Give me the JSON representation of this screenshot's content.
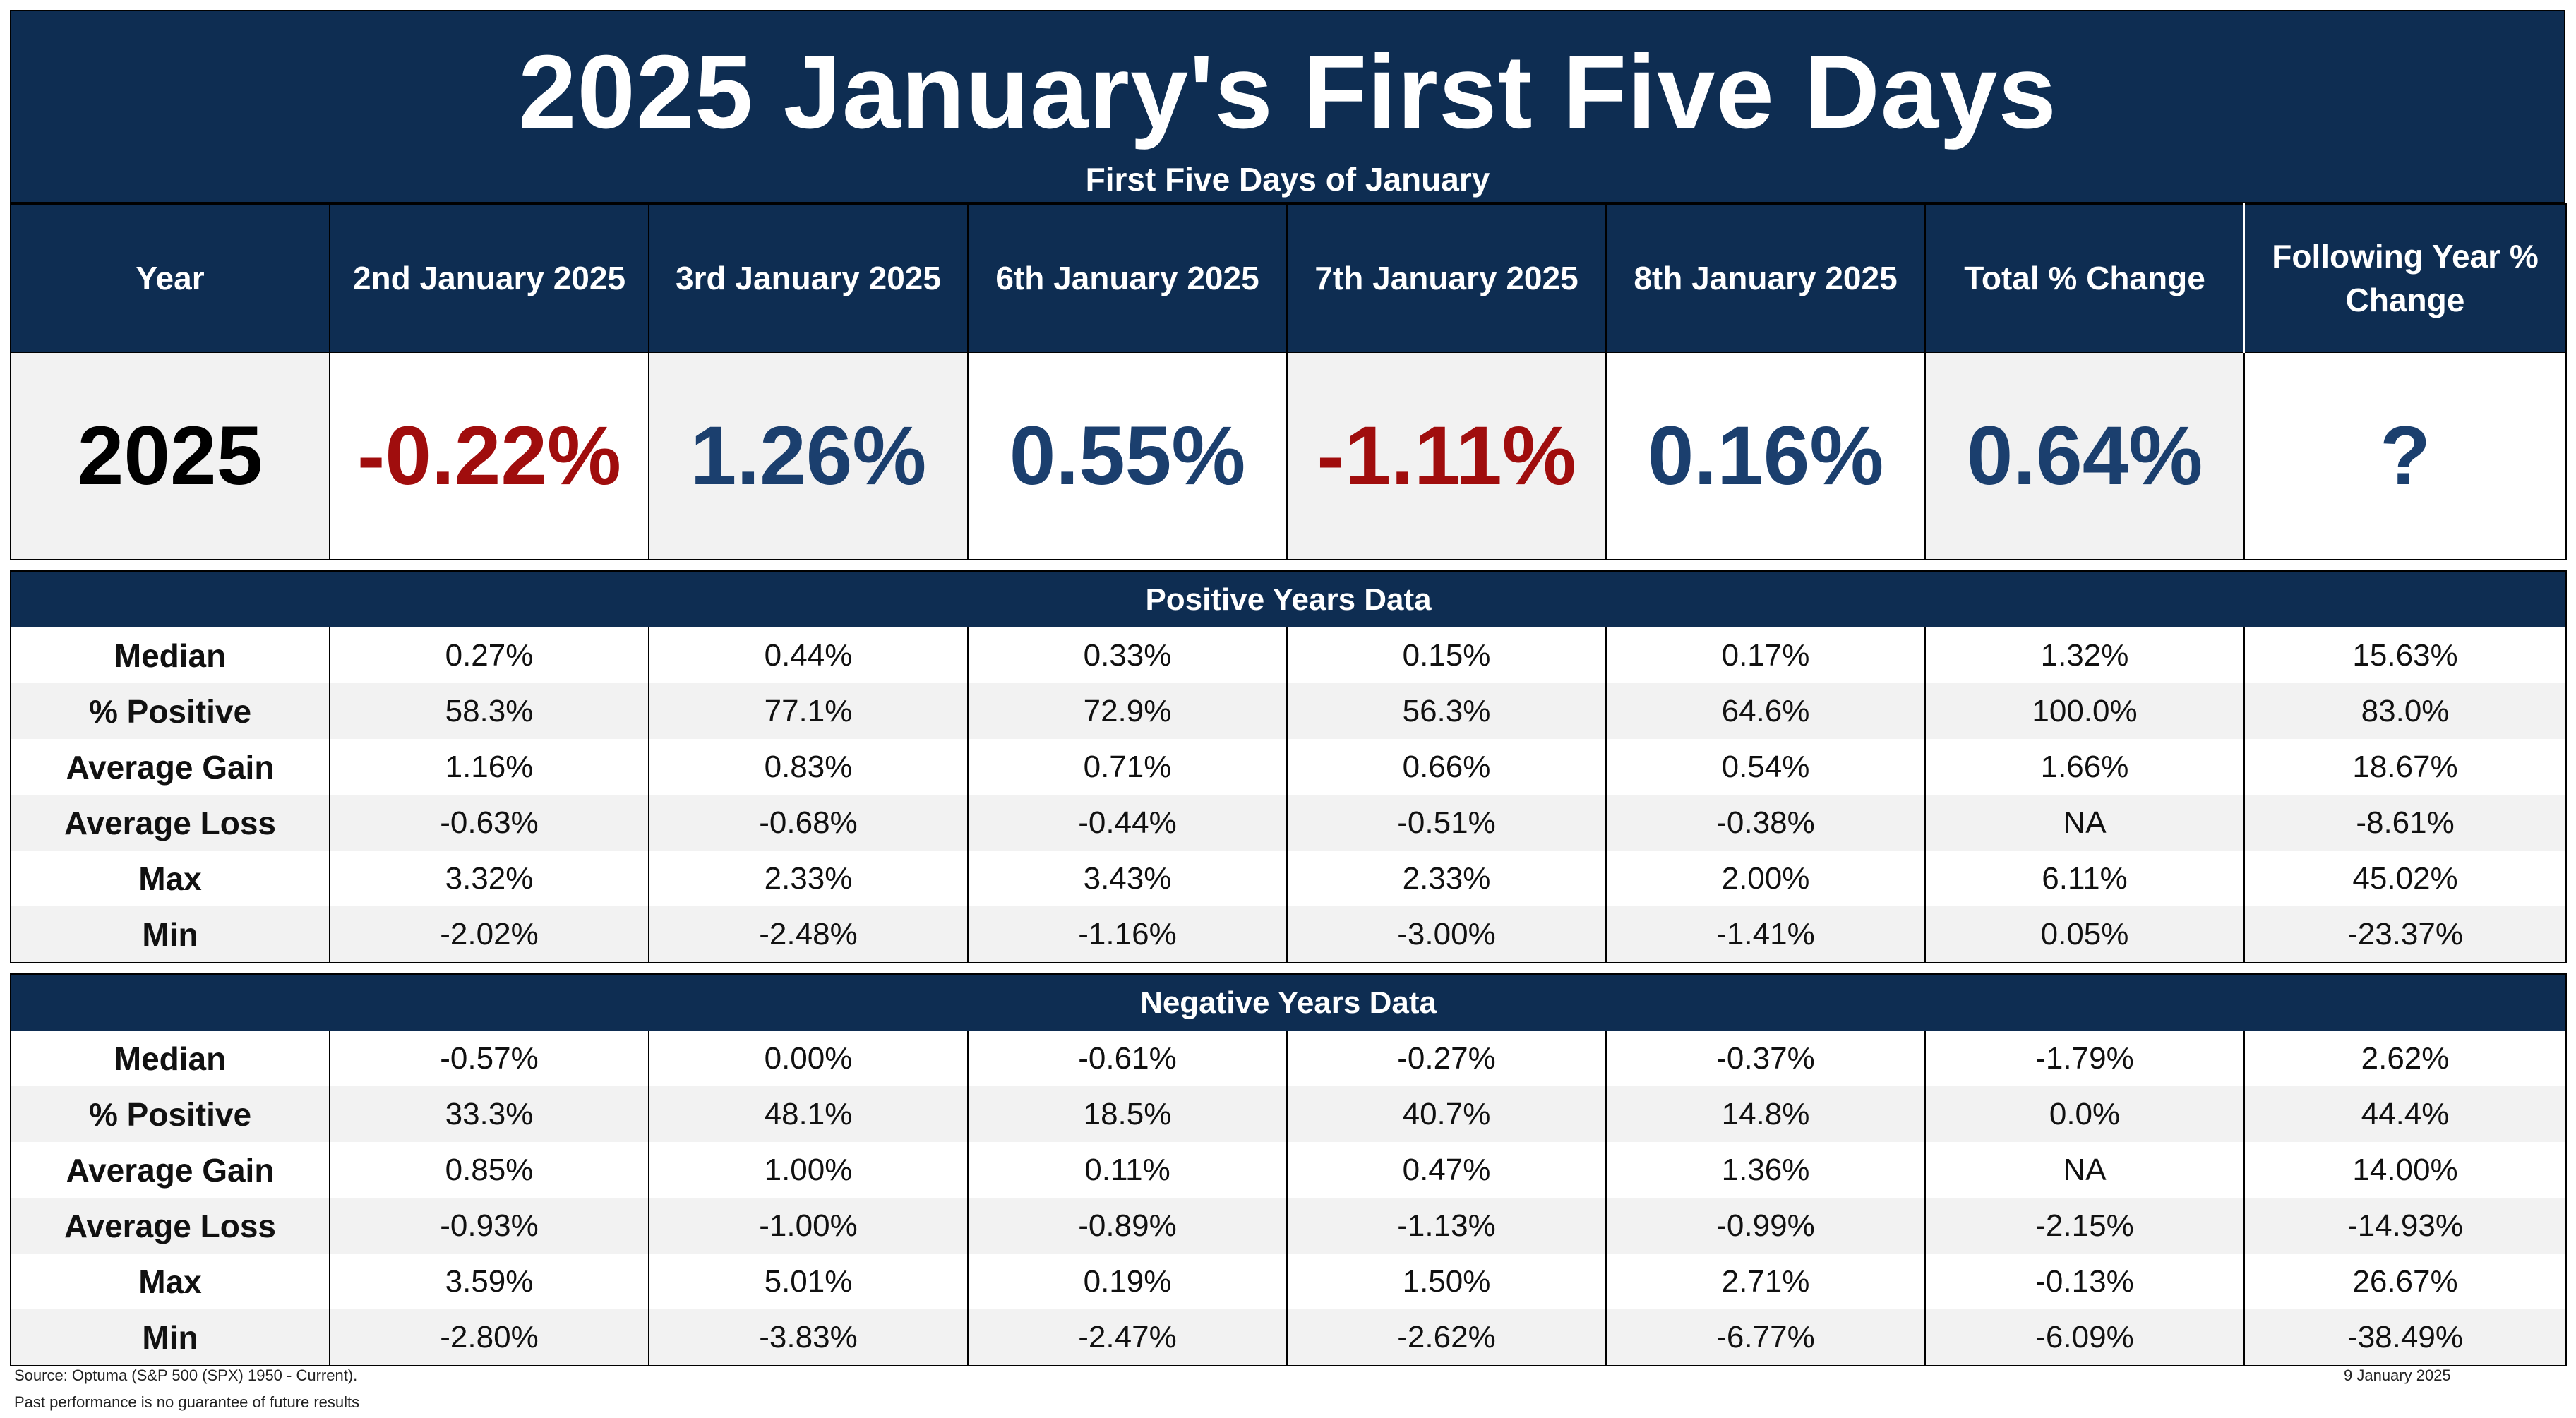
{
  "title": "2025 January's First Five Days",
  "subtitle": "First Five Days of January",
  "headers": [
    "Year",
    "2nd January 2025",
    "3rd January 2025",
    "6th January 2025",
    "7th January 2025",
    "8th January 2025",
    "Total % Change",
    "Following Year % Change"
  ],
  "current": {
    "year": "2025",
    "values": [
      "-0.22%",
      "1.26%",
      "0.55%",
      "-1.11%",
      "0.16%",
      "0.64%",
      "?"
    ],
    "colors": {
      "negative": "#a00d0d",
      "positive": "#1b3f6e"
    }
  },
  "positive": {
    "title": "Positive Years Data",
    "rows": [
      {
        "label": "Median",
        "values": [
          "0.27%",
          "0.44%",
          "0.33%",
          "0.15%",
          "0.17%",
          "1.32%",
          "15.63%"
        ]
      },
      {
        "label": "% Positive",
        "values": [
          "58.3%",
          "77.1%",
          "72.9%",
          "56.3%",
          "64.6%",
          "100.0%",
          "83.0%"
        ]
      },
      {
        "label": "Average Gain",
        "values": [
          "1.16%",
          "0.83%",
          "0.71%",
          "0.66%",
          "0.54%",
          "1.66%",
          "18.67%"
        ]
      },
      {
        "label": "Average Loss",
        "values": [
          "-0.63%",
          "-0.68%",
          "-0.44%",
          "-0.51%",
          "-0.38%",
          "NA",
          "-8.61%"
        ]
      },
      {
        "label": "Max",
        "values": [
          "3.32%",
          "2.33%",
          "3.43%",
          "2.33%",
          "2.00%",
          "6.11%",
          "45.02%"
        ]
      },
      {
        "label": "Min",
        "values": [
          "-2.02%",
          "-2.48%",
          "-1.16%",
          "-3.00%",
          "-1.41%",
          "0.05%",
          "-23.37%"
        ]
      }
    ]
  },
  "negative": {
    "title": "Negative Years Data",
    "rows": [
      {
        "label": "Median",
        "values": [
          "-0.57%",
          "0.00%",
          "-0.61%",
          "-0.27%",
          "-0.37%",
          "-1.79%",
          "2.62%"
        ]
      },
      {
        "label": "% Positive",
        "values": [
          "33.3%",
          "48.1%",
          "18.5%",
          "40.7%",
          "14.8%",
          "0.0%",
          "44.4%"
        ]
      },
      {
        "label": "Average Gain",
        "values": [
          "0.85%",
          "1.00%",
          "0.11%",
          "0.47%",
          "1.36%",
          "NA",
          "14.00%"
        ]
      },
      {
        "label": "Average Loss",
        "values": [
          "-0.93%",
          "-1.00%",
          "-0.89%",
          "-1.13%",
          "-0.99%",
          "-2.15%",
          "-14.93%"
        ]
      },
      {
        "label": "Max",
        "values": [
          "3.59%",
          "5.01%",
          "0.19%",
          "1.50%",
          "2.71%",
          "-0.13%",
          "26.67%"
        ]
      },
      {
        "label": "Min",
        "values": [
          "-2.80%",
          "-3.83%",
          "-2.47%",
          "-2.62%",
          "-6.77%",
          "-6.09%",
          "-38.49%"
        ]
      }
    ]
  },
  "footer": {
    "source": "Source: Optuma (S&P 500 (SPX) 1950 - Current).",
    "disclaimer": "Past performance is no guarantee of future results",
    "date": "9 January 2025"
  }
}
